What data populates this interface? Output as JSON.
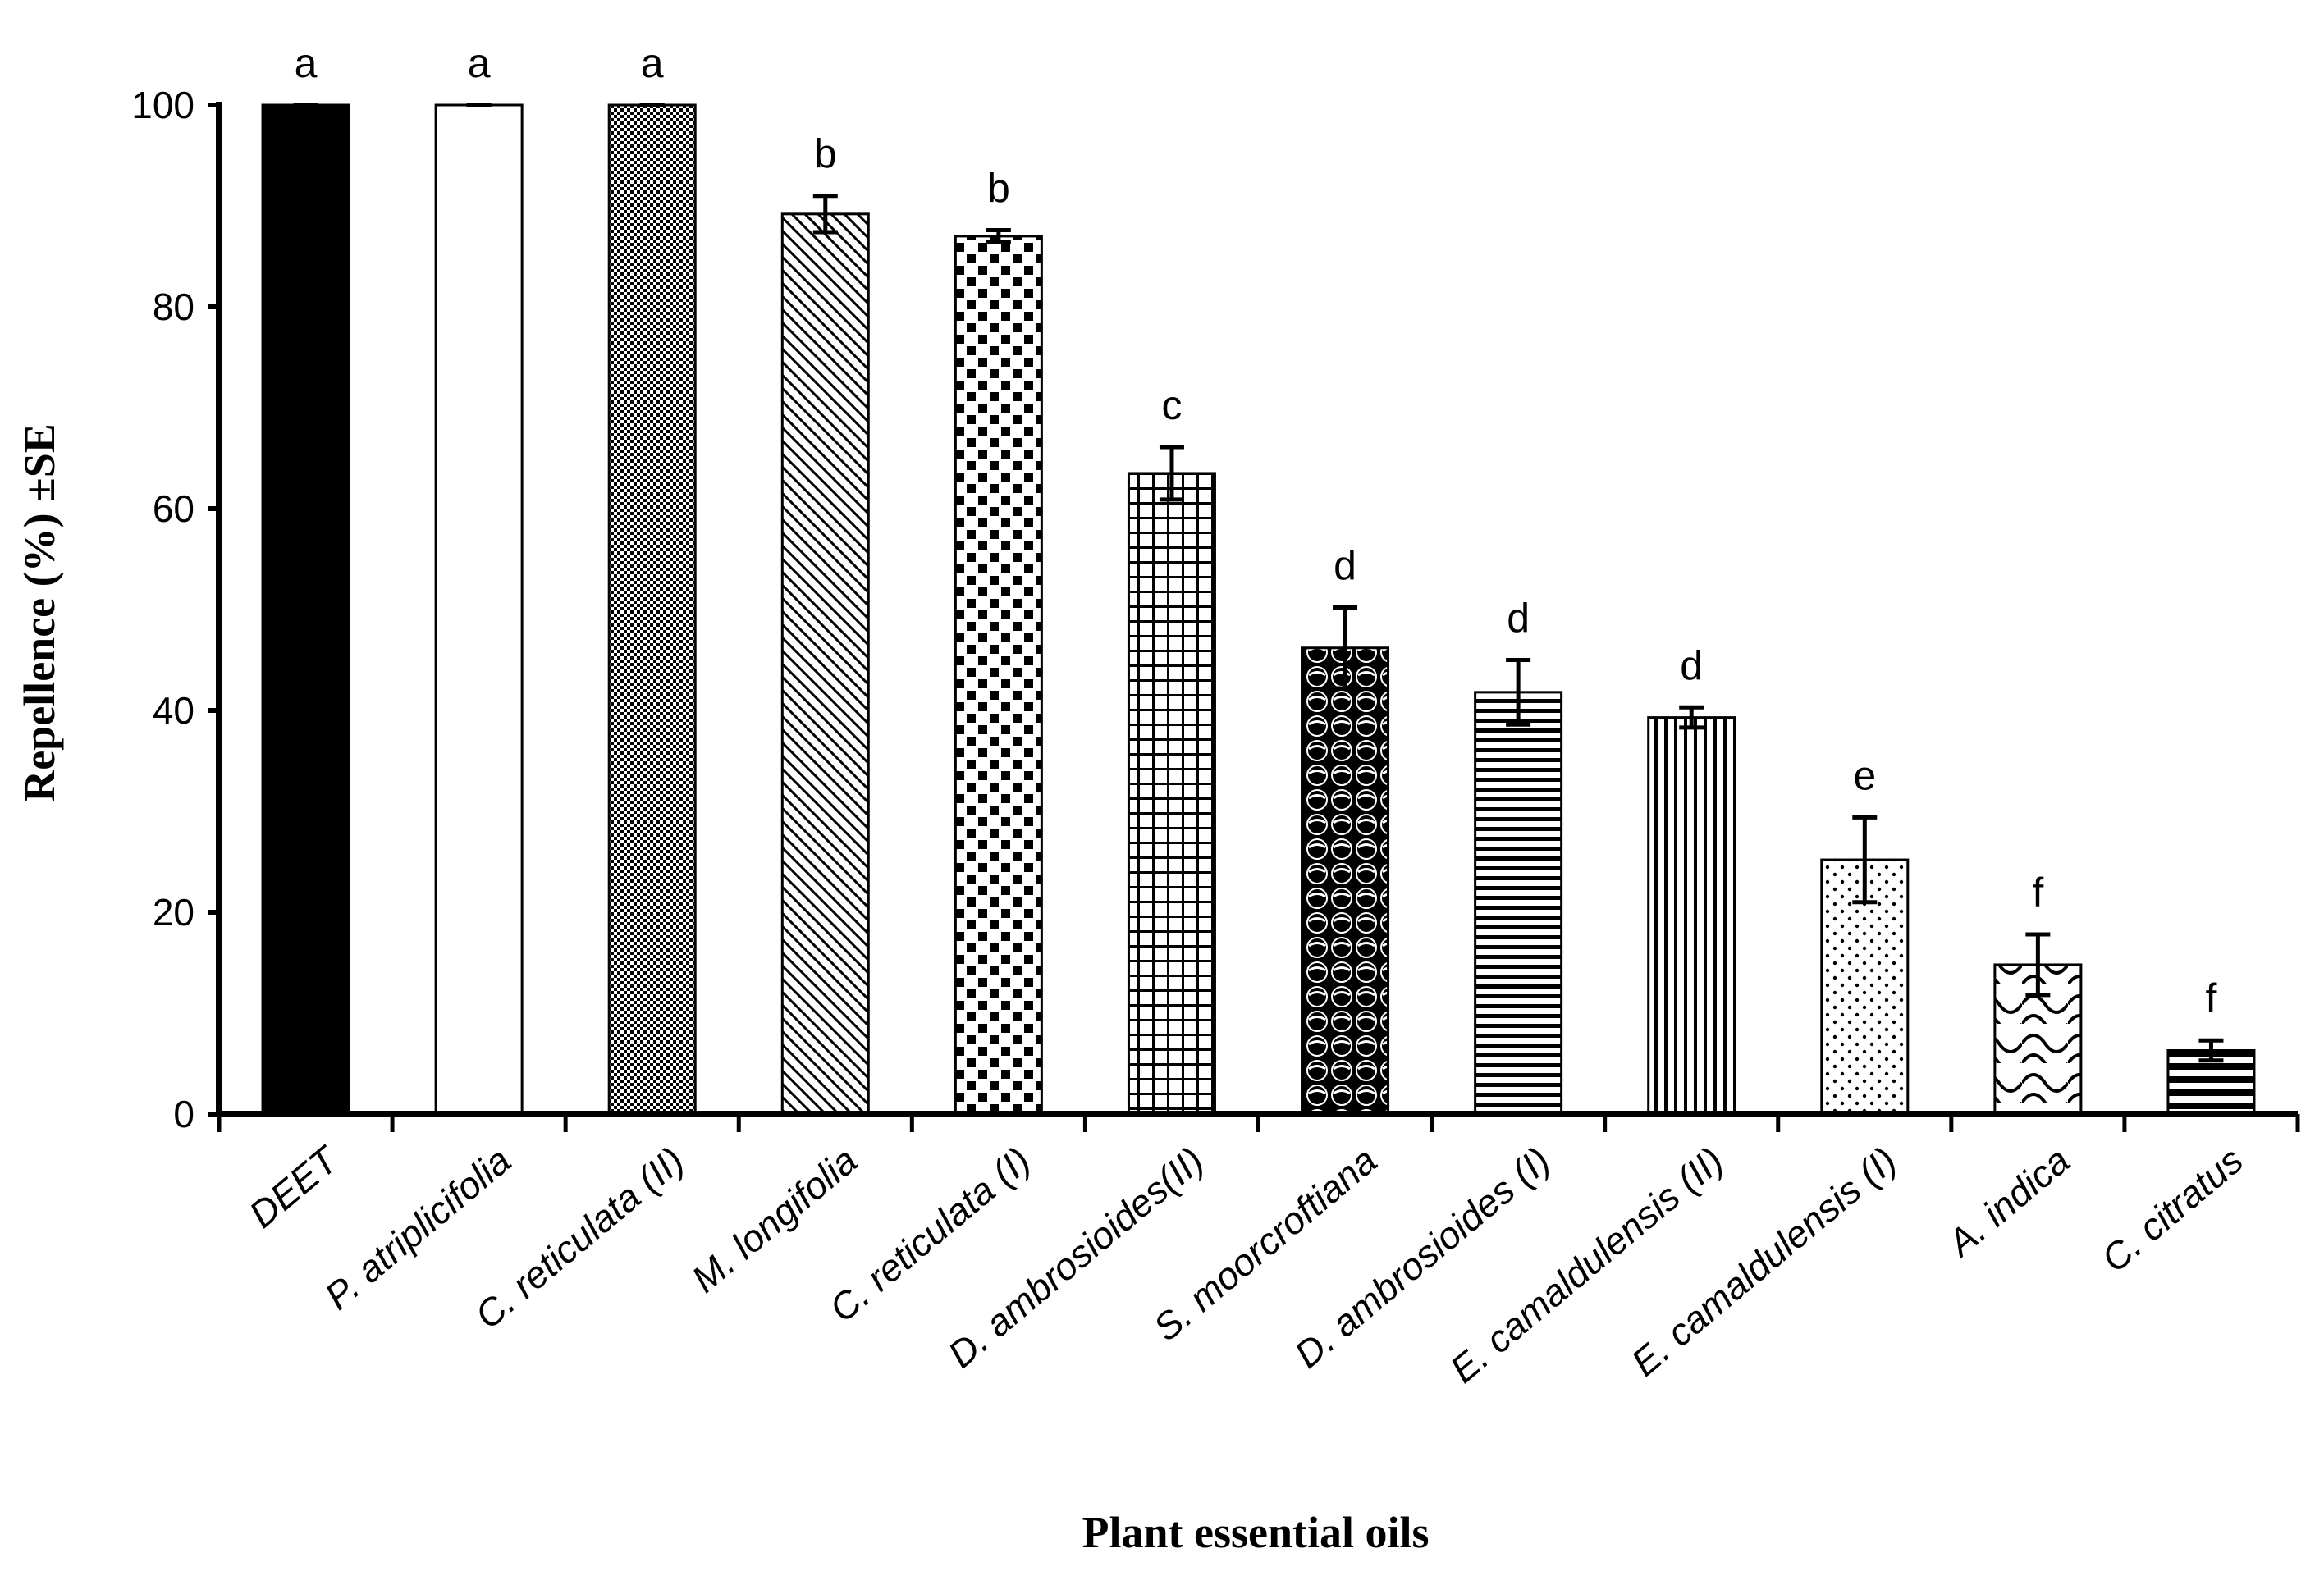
{
  "chart_data": {
    "type": "bar",
    "title": "",
    "xlabel": "Plant essential oils",
    "ylabel": "Repellence (%) ±SE",
    "ylim": [
      0,
      100
    ],
    "yticks": [
      0,
      20,
      40,
      60,
      80,
      100
    ],
    "grid": false,
    "categories": [
      "DEET",
      "P. atriplicifolia",
      "C. reticulata (II)",
      "M. longifolia",
      "C. reticulata (I)",
      "D. ambrosioides(II)",
      "S. moorcroftiana",
      "D. ambrosioides (I)",
      "E. camaldulensis (II)",
      "E. camaldulensis (I)",
      "A. indica",
      "C. citratus"
    ],
    "values": [
      100,
      100,
      100,
      89.2,
      87.0,
      63.5,
      46.2,
      41.8,
      39.3,
      25.2,
      14.8,
      6.3
    ],
    "errors": [
      0,
      0,
      0,
      1.8,
      0.6,
      2.6,
      4.0,
      3.2,
      1.0,
      4.2,
      3.0,
      1.0
    ],
    "significance_letters": [
      "a",
      "a",
      "a",
      "b",
      "b",
      "c",
      "d",
      "d",
      "d",
      "e",
      "f",
      "f"
    ],
    "fill_patterns": [
      "solid-black",
      "solid-white",
      "fine-checker",
      "diagonal-lines",
      "large-checker",
      "grid",
      "circles",
      "horizontal-lines",
      "vertical-lines",
      "dots",
      "waves",
      "thick-horizontal"
    ]
  }
}
